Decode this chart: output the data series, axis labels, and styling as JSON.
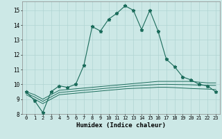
{
  "title": "",
  "xlabel": "Humidex (Indice chaleur)",
  "ylabel": "",
  "xlim": [
    -0.5,
    23.5
  ],
  "ylim": [
    8,
    15.6
  ],
  "background_color": "#cce8e6",
  "grid_color": "#b0d4d2",
  "line_color": "#1a6b5a",
  "x": [
    0,
    1,
    2,
    3,
    4,
    5,
    6,
    7,
    8,
    9,
    10,
    11,
    12,
    13,
    14,
    15,
    16,
    17,
    18,
    19,
    20,
    21,
    22,
    23
  ],
  "y_main": [
    9.5,
    8.9,
    8.1,
    9.5,
    9.9,
    9.8,
    10.0,
    11.3,
    13.9,
    13.6,
    14.4,
    14.8,
    15.3,
    15.0,
    13.7,
    15.0,
    13.6,
    11.7,
    11.2,
    10.5,
    10.3,
    10.0,
    9.9,
    9.5
  ],
  "y_line2": [
    9.5,
    9.3,
    9.0,
    9.3,
    9.6,
    9.65,
    9.7,
    9.75,
    9.8,
    9.85,
    9.9,
    9.95,
    10.0,
    10.05,
    10.1,
    10.15,
    10.2,
    10.2,
    10.2,
    10.2,
    10.2,
    10.15,
    10.1,
    10.1
  ],
  "y_line3": [
    9.4,
    9.15,
    8.85,
    9.15,
    9.45,
    9.5,
    9.55,
    9.6,
    9.65,
    9.7,
    9.75,
    9.8,
    9.85,
    9.9,
    9.93,
    9.96,
    9.99,
    10.0,
    9.99,
    9.98,
    9.97,
    9.95,
    9.93,
    9.93
  ],
  "y_line4": [
    9.3,
    9.0,
    8.7,
    9.0,
    9.3,
    9.35,
    9.4,
    9.45,
    9.5,
    9.55,
    9.6,
    9.65,
    9.7,
    9.73,
    9.75,
    9.77,
    9.8,
    9.8,
    9.78,
    9.75,
    9.72,
    9.7,
    9.68,
    9.65
  ],
  "yticks": [
    8,
    9,
    10,
    11,
    12,
    13,
    14,
    15
  ],
  "xticks": [
    0,
    1,
    2,
    3,
    4,
    5,
    6,
    7,
    8,
    9,
    10,
    11,
    12,
    13,
    14,
    15,
    16,
    17,
    18,
    19,
    20,
    21,
    22,
    23
  ],
  "markersize": 3.5,
  "linewidth": 0.8
}
